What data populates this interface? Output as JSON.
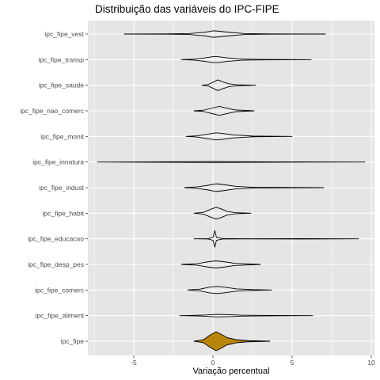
{
  "chart_data": {
    "type": "violin",
    "title": "Distribuição das variáveis do IPC-FIPE",
    "xlabel": "Variação percentual",
    "ylabel": "",
    "xlim": [
      -7.9,
      10.2
    ],
    "x_ticks": [
      -5,
      0,
      5,
      10
    ],
    "x_tick_labels": [
      "-5",
      "0",
      "5",
      "10"
    ],
    "grid": true,
    "legend": "none",
    "panel_background": "#e5e5e5",
    "grid_color": "#ffffff",
    "outline_color": "#000000",
    "highlight_fill": "#b8860b",
    "categories": [
      "ipc_fipe_vest",
      "ipc_fipe_transp",
      "ipc_fipe_saude",
      "ipc_fipe_nao_comerc",
      "ipc_fipe_monit",
      "ipc_fipe_innatura",
      "ipc_fipe_indust",
      "ipc_fipe_habit",
      "ipc_fipe_educacao",
      "ipc_fipe_desp_pes",
      "ipc_fipe_comerc",
      "ipc_fipe_aliment",
      "ipc_fipe"
    ],
    "series": [
      {
        "category": "ipc_fipe_vest",
        "min": -5.6,
        "max": 7.1,
        "profile": [
          [
            -5.6,
            0.0
          ],
          [
            -3,
            0.03
          ],
          [
            -1.5,
            0.08
          ],
          [
            -0.5,
            0.3
          ],
          [
            0,
            0.55
          ],
          [
            0.3,
            0.5
          ],
          [
            1,
            0.3
          ],
          [
            2,
            0.08
          ],
          [
            3.5,
            0.03
          ],
          [
            7.1,
            0.0
          ]
        ]
      },
      {
        "category": "ipc_fipe_transp",
        "min": -2.0,
        "max": 6.2,
        "profile": [
          [
            -2.0,
            0.0
          ],
          [
            -1.2,
            0.08
          ],
          [
            -0.5,
            0.3
          ],
          [
            0,
            0.5
          ],
          [
            0.3,
            0.5
          ],
          [
            0.9,
            0.3
          ],
          [
            1.8,
            0.1
          ],
          [
            3,
            0.04
          ],
          [
            6.2,
            0.0
          ]
        ]
      },
      {
        "category": "ipc_fipe_saude",
        "min": -0.7,
        "max": 2.7,
        "profile": [
          [
            -0.7,
            0.0
          ],
          [
            -0.3,
            0.12
          ],
          [
            0,
            0.5
          ],
          [
            0.3,
            0.9
          ],
          [
            0.6,
            0.6
          ],
          [
            1,
            0.25
          ],
          [
            1.5,
            0.08
          ],
          [
            2.7,
            0.0
          ]
        ]
      },
      {
        "category": "ipc_fipe_nao_comerc",
        "min": -1.2,
        "max": 2.6,
        "profile": [
          [
            -1.2,
            0.0
          ],
          [
            -0.6,
            0.1
          ],
          [
            0,
            0.5
          ],
          [
            0.4,
            0.75
          ],
          [
            0.9,
            0.45
          ],
          [
            1.4,
            0.15
          ],
          [
            2.6,
            0.0
          ]
        ]
      },
      {
        "category": "ipc_fipe_monit",
        "min": -1.7,
        "max": 5.0,
        "profile": [
          [
            -1.7,
            0.0
          ],
          [
            -1,
            0.1
          ],
          [
            -0.3,
            0.4
          ],
          [
            0.2,
            0.6
          ],
          [
            0.6,
            0.5
          ],
          [
            1.3,
            0.25
          ],
          [
            2.5,
            0.06
          ],
          [
            5,
            0.0
          ]
        ]
      },
      {
        "category": "ipc_fipe_innatura",
        "min": -7.3,
        "max": 9.6,
        "profile": [
          [
            -7.3,
            0.0
          ],
          [
            -4,
            0.03
          ],
          [
            -1,
            0.07
          ],
          [
            0,
            0.09
          ],
          [
            1,
            0.07
          ],
          [
            4,
            0.03
          ],
          [
            9.6,
            0.0
          ]
        ]
      },
      {
        "category": "ipc_fipe_indust",
        "min": -1.8,
        "max": 7.0,
        "profile": [
          [
            -1.8,
            0.0
          ],
          [
            -1,
            0.12
          ],
          [
            -0.3,
            0.4
          ],
          [
            0.2,
            0.65
          ],
          [
            0.7,
            0.5
          ],
          [
            1.4,
            0.22
          ],
          [
            2.5,
            0.06
          ],
          [
            7,
            0.0
          ]
        ]
      },
      {
        "category": "ipc_fipe_habit",
        "min": -1.2,
        "max": 2.4,
        "profile": [
          [
            -1.2,
            0.0
          ],
          [
            -0.6,
            0.15
          ],
          [
            -0.2,
            0.6
          ],
          [
            0.2,
            1.0
          ],
          [
            0.5,
            0.75
          ],
          [
            0.9,
            0.3
          ],
          [
            1.4,
            0.1
          ],
          [
            2.4,
            0.0
          ]
        ]
      },
      {
        "category": "ipc_fipe_educacao",
        "min": -1.2,
        "max": 9.2,
        "profile": [
          [
            -1.2,
            0.0
          ],
          [
            -0.3,
            0.03
          ],
          [
            0,
            0.25
          ],
          [
            0.12,
            1.4
          ],
          [
            0.22,
            0.25
          ],
          [
            0.6,
            0.04
          ],
          [
            2,
            0.02
          ],
          [
            6,
            0.03
          ],
          [
            9.2,
            0.0
          ]
        ]
      },
      {
        "category": "ipc_fipe_desp_pes",
        "min": -2.0,
        "max": 3.0,
        "profile": [
          [
            -2.0,
            0.0
          ],
          [
            -1,
            0.12
          ],
          [
            -0.3,
            0.45
          ],
          [
            0.2,
            0.6
          ],
          [
            0.7,
            0.45
          ],
          [
            1.4,
            0.18
          ],
          [
            3,
            0.0
          ]
        ]
      },
      {
        "category": "ipc_fipe_comerc",
        "min": -1.6,
        "max": 3.7,
        "profile": [
          [
            -1.6,
            0.0
          ],
          [
            -0.8,
            0.15
          ],
          [
            -0.2,
            0.5
          ],
          [
            0.3,
            0.6
          ],
          [
            0.8,
            0.45
          ],
          [
            1.5,
            0.18
          ],
          [
            2.5,
            0.06
          ],
          [
            3.7,
            0.0
          ]
        ]
      },
      {
        "category": "ipc_fipe_aliment",
        "min": -2.1,
        "max": 6.3,
        "profile": [
          [
            -2.1,
            0.0
          ],
          [
            -1.2,
            0.04
          ],
          [
            -0.4,
            0.12
          ],
          [
            0.2,
            0.22
          ],
          [
            0.8,
            0.18
          ],
          [
            1.8,
            0.08
          ],
          [
            3.5,
            0.03
          ],
          [
            6.3,
            0.0
          ]
        ]
      },
      {
        "category": "ipc_fipe",
        "min": -1.2,
        "max": 3.6,
        "profile": [
          [
            -1.2,
            0.0
          ],
          [
            -0.6,
            0.25
          ],
          [
            -0.2,
            1.0
          ],
          [
            0.2,
            1.6
          ],
          [
            0.5,
            1.2
          ],
          [
            0.9,
            0.6
          ],
          [
            1.5,
            0.25
          ],
          [
            2.2,
            0.1
          ],
          [
            3.6,
            0.0
          ]
        ]
      }
    ]
  }
}
